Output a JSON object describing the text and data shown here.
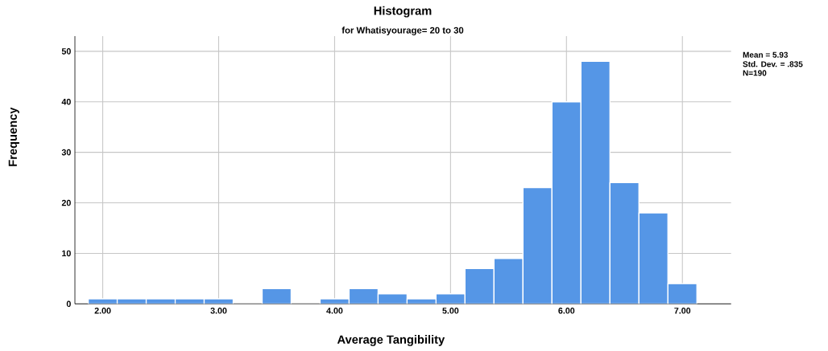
{
  "chart_data": {
    "type": "histogram",
    "title": "Histogram",
    "subtitle": "for Whatisyourage= 20 to 30",
    "xlabel": "Average Tangibility",
    "ylabel": "Frequency",
    "bins": [
      1.875,
      2.125,
      2.375,
      2.625,
      2.875,
      3.125,
      3.375,
      3.625,
      3.875,
      4.125,
      4.375,
      4.625,
      4.875,
      5.125,
      5.375,
      5.625,
      5.875,
      6.125,
      6.375,
      6.625,
      6.875,
      7.125
    ],
    "values": [
      1,
      1,
      1,
      1,
      1,
      0,
      3,
      0,
      1,
      3,
      2,
      1,
      2,
      7,
      9,
      23,
      40,
      48,
      24,
      18,
      4
    ],
    "color": "#5596e6",
    "xlim": [
      1.76,
      7.42
    ],
    "ylim": [
      0,
      53
    ],
    "xticks": [
      {
        "value": 2,
        "label": "2.00"
      },
      {
        "value": 3,
        "label": "3.00"
      },
      {
        "value": 4,
        "label": "4.00"
      },
      {
        "value": 5,
        "label": "5.00"
      },
      {
        "value": 6,
        "label": "6.00"
      },
      {
        "value": 7,
        "label": "7.00"
      }
    ],
    "yticks": [
      0,
      10,
      20,
      30,
      40,
      50
    ],
    "grid": true,
    "annotations": [
      "Mean = 5.93",
      "Std. Dev. = .835",
      "N=190"
    ]
  }
}
